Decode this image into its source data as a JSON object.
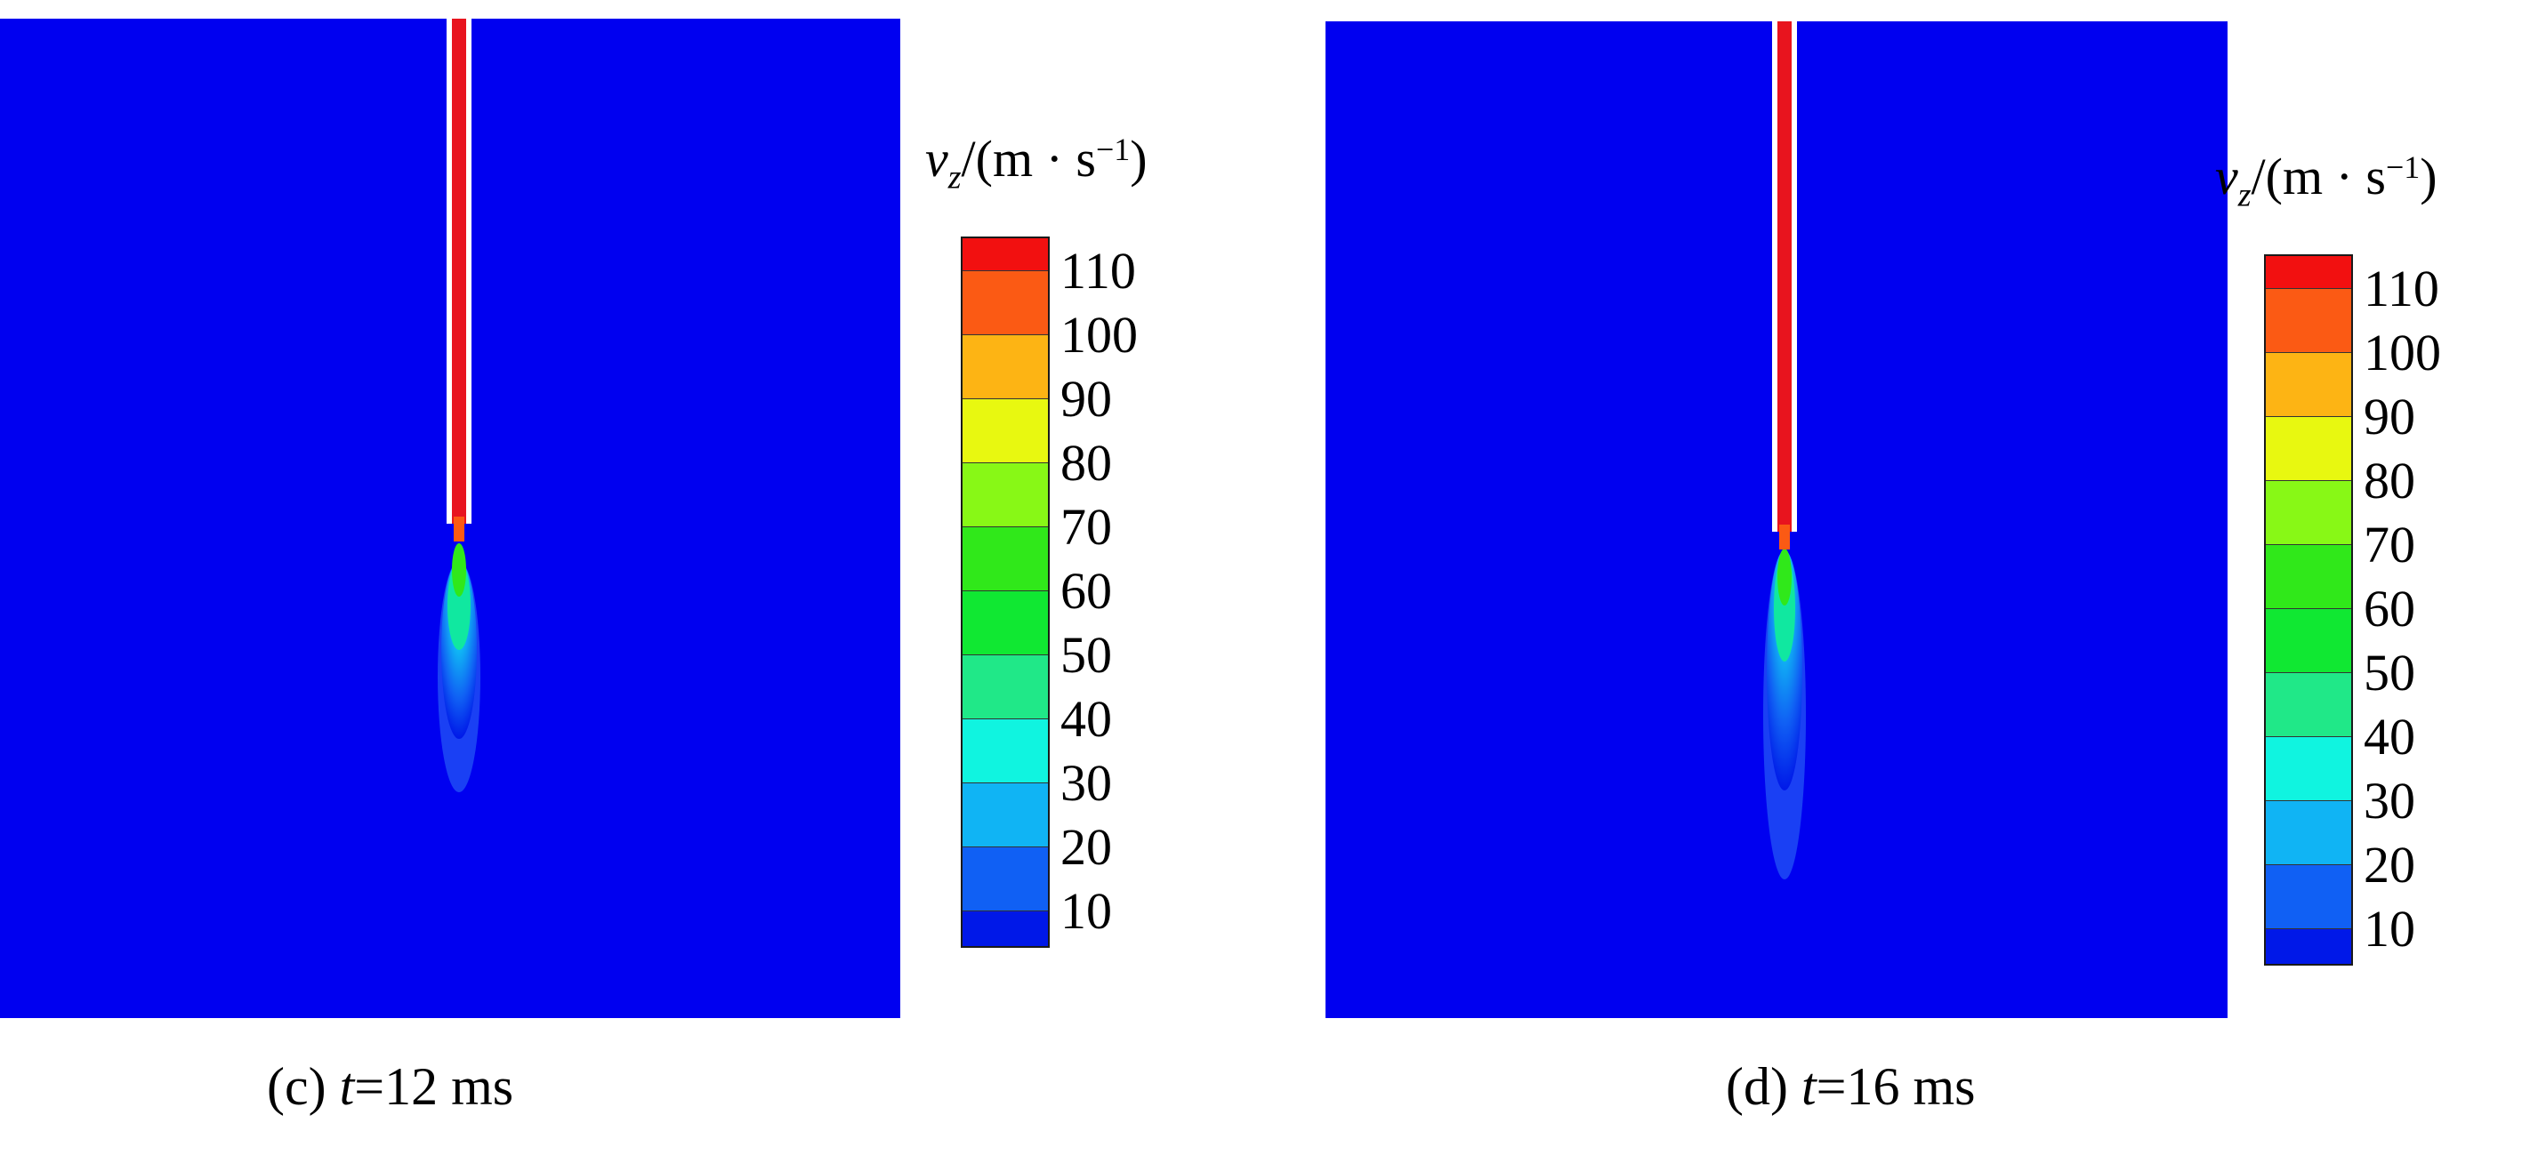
{
  "colors": {
    "background_field": "#0000f0",
    "nozzle_wall": "#ffffff",
    "jet_core": "#e8141e",
    "legend": [
      "#f21010",
      "#fb5a14",
      "#fdb414",
      "#e8f810",
      "#88f816",
      "#30e81a",
      "#10e832",
      "#20e888",
      "#10f4e0",
      "#10b4f4",
      "#1060f4",
      "#0018e8"
    ]
  },
  "legend": {
    "title_var": "v",
    "title_sub": "z",
    "title_unit_open": "/(m · s",
    "title_unit_exp": "−1",
    "title_unit_close": ")",
    "ticks": [
      "110",
      "100",
      "90",
      "80",
      "70",
      "60",
      "50",
      "40",
      "30",
      "20",
      "10"
    ]
  },
  "panels": [
    {
      "caption_prefix": "(c) ",
      "caption_var": "t",
      "caption_value": "=12 ms"
    },
    {
      "caption_prefix": "(d) ",
      "caption_var": "t",
      "caption_value": "=16 ms"
    }
  ]
}
